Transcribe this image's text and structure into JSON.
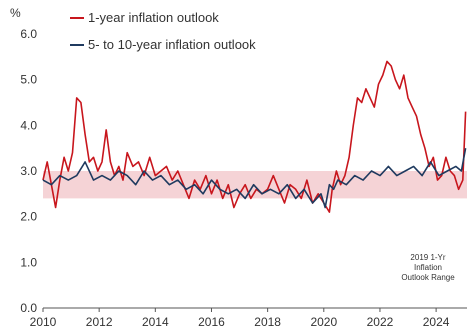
{
  "chart_data": {
    "type": "line",
    "title": "",
    "unit_label": "%",
    "xlabel": "",
    "ylabel": "",
    "xlim": [
      2010.0,
      2025.1
    ],
    "ylim": [
      0.0,
      6.0
    ],
    "x_ticks": [
      2010,
      2012,
      2014,
      2016,
      2018,
      2020,
      2022,
      2024
    ],
    "x_tick_labels": [
      "2010",
      "2012",
      "2014",
      "2016",
      "2018",
      "2020",
      "2022",
      "2024"
    ],
    "y_ticks": [
      0,
      1,
      2,
      3,
      4,
      5,
      6
    ],
    "y_tick_labels": [
      "0.0",
      "1.0",
      "2.0",
      "3.0",
      "4.0",
      "5.0",
      "6.0"
    ],
    "grid": false,
    "legend_position": "top-left",
    "band": {
      "ymin": 2.4,
      "ymax": 3.0,
      "color": "#f2c4c8",
      "label_lines": [
        "2019 1-Yr",
        "Inflation",
        "Outlook Range"
      ]
    },
    "series": [
      {
        "name": "1-year inflation outlook",
        "color": "#c8161d",
        "x": [
          2010.0,
          2010.15,
          2010.3,
          2010.45,
          2010.6,
          2010.75,
          2010.9,
          2011.05,
          2011.2,
          2011.35,
          2011.5,
          2011.65,
          2011.8,
          2011.95,
          2012.1,
          2012.25,
          2012.4,
          2012.55,
          2012.7,
          2012.85,
          2013.0,
          2013.2,
          2013.4,
          2013.6,
          2013.8,
          2014.0,
          2014.2,
          2014.4,
          2014.6,
          2014.8,
          2015.0,
          2015.2,
          2015.4,
          2015.6,
          2015.8,
          2016.0,
          2016.2,
          2016.4,
          2016.6,
          2016.8,
          2017.0,
          2017.2,
          2017.4,
          2017.6,
          2017.8,
          2018.0,
          2018.2,
          2018.4,
          2018.6,
          2018.8,
          2019.0,
          2019.2,
          2019.4,
          2019.6,
          2019.8,
          2020.0,
          2020.1,
          2020.2,
          2020.3,
          2020.45,
          2020.6,
          2020.75,
          2020.9,
          2021.05,
          2021.2,
          2021.35,
          2021.5,
          2021.65,
          2021.8,
          2021.95,
          2022.1,
          2022.25,
          2022.4,
          2022.55,
          2022.7,
          2022.85,
          2023.0,
          2023.15,
          2023.3,
          2023.45,
          2023.6,
          2023.75,
          2023.9,
          2024.05,
          2024.2,
          2024.35,
          2024.5,
          2024.65,
          2024.8,
          2024.95,
          2025.05
        ],
        "values": [
          2.8,
          3.2,
          2.7,
          2.2,
          2.8,
          3.3,
          3.0,
          3.4,
          4.6,
          4.5,
          3.8,
          3.2,
          3.3,
          3.0,
          3.2,
          3.9,
          3.2,
          2.9,
          3.1,
          2.8,
          3.4,
          3.1,
          3.2,
          2.9,
          3.3,
          2.9,
          3.0,
          3.1,
          2.8,
          3.0,
          2.7,
          2.4,
          2.8,
          2.6,
          2.9,
          2.5,
          2.8,
          2.4,
          2.7,
          2.2,
          2.5,
          2.7,
          2.4,
          2.6,
          2.5,
          2.6,
          2.9,
          2.6,
          2.3,
          2.7,
          2.6,
          2.4,
          2.8,
          2.3,
          2.5,
          2.3,
          2.2,
          2.1,
          2.6,
          3.0,
          2.7,
          2.9,
          3.3,
          4.0,
          4.6,
          4.5,
          4.8,
          4.6,
          4.4,
          4.9,
          5.1,
          5.4,
          5.3,
          5.0,
          4.8,
          5.1,
          4.6,
          4.4,
          4.2,
          3.8,
          3.5,
          3.1,
          3.3,
          2.8,
          2.9,
          3.3,
          3.0,
          2.9,
          2.6,
          2.8,
          4.3
        ]
      },
      {
        "name": "5- to 10-year inflation outlook",
        "color": "#1f3a5f",
        "x": [
          2010.0,
          2010.3,
          2010.6,
          2010.9,
          2011.2,
          2011.5,
          2011.8,
          2012.1,
          2012.4,
          2012.7,
          2013.0,
          2013.3,
          2013.6,
          2013.9,
          2014.2,
          2014.5,
          2014.8,
          2015.1,
          2015.4,
          2015.7,
          2016.0,
          2016.3,
          2016.6,
          2016.9,
          2017.2,
          2017.5,
          2017.8,
          2018.1,
          2018.4,
          2018.7,
          2019.0,
          2019.3,
          2019.6,
          2019.9,
          2020.05,
          2020.2,
          2020.35,
          2020.5,
          2020.8,
          2021.1,
          2021.4,
          2021.7,
          2022.0,
          2022.3,
          2022.6,
          2022.9,
          2023.2,
          2023.5,
          2023.8,
          2024.1,
          2024.4,
          2024.7,
          2024.9,
          2025.05
        ],
        "values": [
          2.8,
          2.7,
          2.9,
          2.8,
          2.9,
          3.2,
          2.8,
          2.9,
          2.8,
          3.0,
          2.9,
          2.7,
          3.0,
          2.8,
          2.9,
          2.7,
          2.8,
          2.6,
          2.7,
          2.5,
          2.8,
          2.6,
          2.5,
          2.6,
          2.4,
          2.7,
          2.5,
          2.6,
          2.5,
          2.7,
          2.4,
          2.6,
          2.3,
          2.5,
          2.2,
          2.7,
          2.6,
          2.8,
          2.7,
          2.9,
          2.8,
          3.0,
          2.9,
          3.1,
          2.9,
          3.0,
          3.1,
          2.9,
          3.2,
          2.9,
          3.0,
          3.1,
          3.0,
          3.5
        ]
      }
    ]
  }
}
